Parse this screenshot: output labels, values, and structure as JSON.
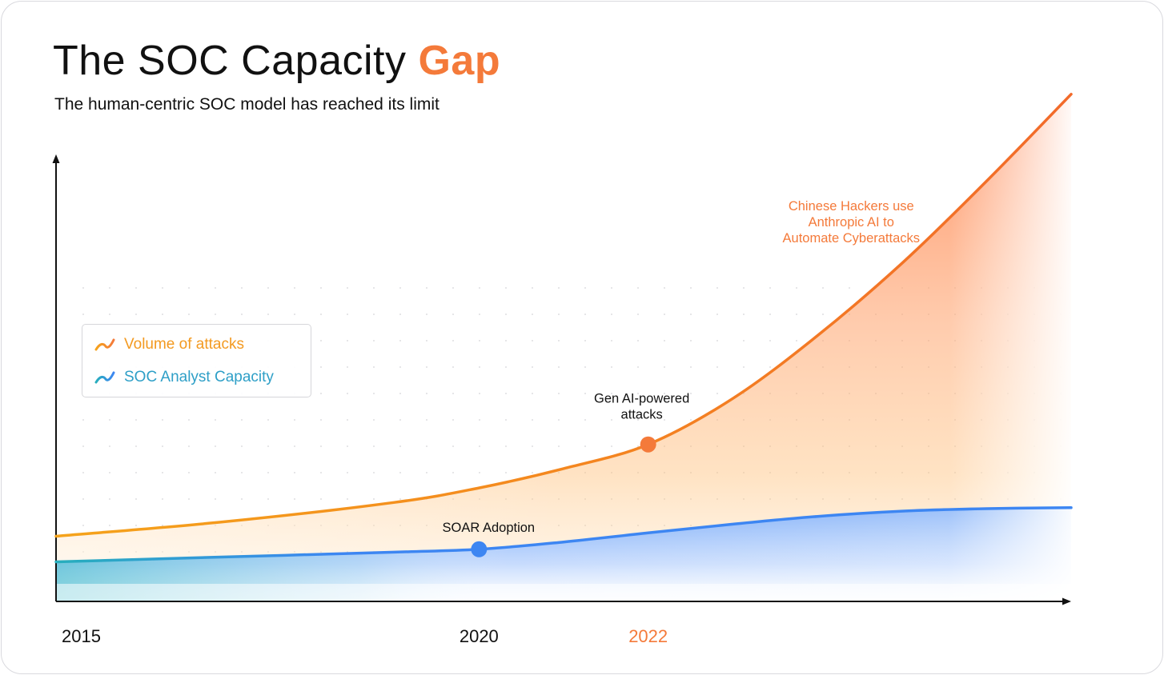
{
  "page": {
    "title_main": "The SOC Capacity ",
    "title_accent": "Gap",
    "subtitle": "The human-centric SOC model has reached its limit"
  },
  "colors": {
    "attacks_line": "#f48a1e",
    "capacity_line": "#3d86f2",
    "capacity_start": "#27aebc",
    "highlight": "#f47a3a",
    "legend_attacks_text": "#f39a21",
    "legend_capacity_text": "#2e9fc7"
  },
  "legend": {
    "items": [
      {
        "label": "Volume of attacks",
        "icon": "line-chart-icon-orange"
      },
      {
        "label": "SOC Analyst Capacity",
        "icon": "line-chart-icon-blue"
      }
    ]
  },
  "chart_data": {
    "type": "area",
    "x_ticks": [
      {
        "label": "2015",
        "x": 2015,
        "highlight": false
      },
      {
        "label": "2020",
        "x": 2020,
        "highlight": false
      },
      {
        "label": "2022",
        "x": 2022,
        "highlight": true
      }
    ],
    "xlim": [
      2015,
      2027
    ],
    "ylim": [
      0,
      100
    ],
    "grid": "dotted",
    "legend_position": "left",
    "series": [
      {
        "name": "Volume of attacks",
        "x": [
          2015,
          2017,
          2019,
          2020,
          2021,
          2022,
          2023,
          2024,
          2025,
          2026,
          2027
        ],
        "y": [
          13.5,
          16.5,
          20.5,
          23.5,
          27.5,
          32.5,
          42,
          55,
          70,
          87,
          105
        ]
      },
      {
        "name": "SOC Analyst Capacity",
        "x": [
          2015,
          2017,
          2019,
          2020,
          2021,
          2022,
          2023,
          2024,
          2025,
          2026,
          2027
        ],
        "y": [
          8.2,
          9.2,
          10.2,
          10.8,
          12.3,
          14.2,
          16,
          17.6,
          18.7,
          19.2,
          19.4
        ]
      }
    ],
    "markers": [
      {
        "series": 1,
        "x": 2020,
        "y": 10.8,
        "label": "SOAR Adoption"
      },
      {
        "series": 0,
        "x": 2022,
        "y": 32.5,
        "label_lines": [
          "Gen AI-powered",
          "attacks"
        ]
      }
    ],
    "annotations": [
      {
        "x": 2024.4,
        "y": 81,
        "lines": [
          "Chinese Hackers use",
          "Anthropic AI to",
          "Automate Cyberattacks"
        ],
        "color": "#f47a3a"
      }
    ]
  }
}
